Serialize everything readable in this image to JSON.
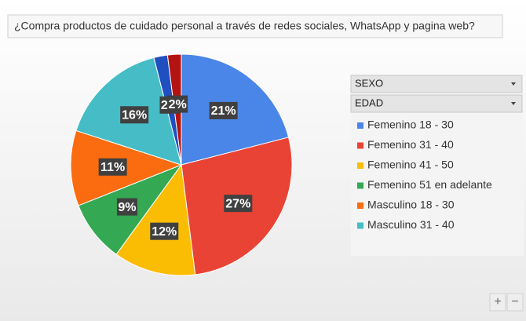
{
  "chart_data": {
    "type": "pie",
    "title": "¿Compra productos de cuidado personal a través de redes sociales, WhatsApp y pagina web?",
    "categories": [
      "Femenino 18 - 30",
      "Femenino 31 - 40",
      "Femenino 41 - 50",
      "Femenino 51 en adelante",
      "Masculino 18 - 30",
      "Masculino 31 - 40",
      null,
      null
    ],
    "values": [
      21,
      27,
      12,
      9,
      11,
      16,
      2,
      2
    ],
    "value_labels": [
      "21%",
      "27%",
      "12%",
      "9%",
      "11%",
      "16%",
      "2%",
      "2%"
    ],
    "colors": [
      "#4a86e8",
      "#e94335",
      "#fbbc04",
      "#34a853",
      "#fa6c0f",
      "#46bdc6",
      "#1f4fc0",
      "#b31412"
    ]
  },
  "filters": [
    "SEXO",
    "EDAD"
  ],
  "zoom_buttons": [
    "+",
    "−"
  ]
}
